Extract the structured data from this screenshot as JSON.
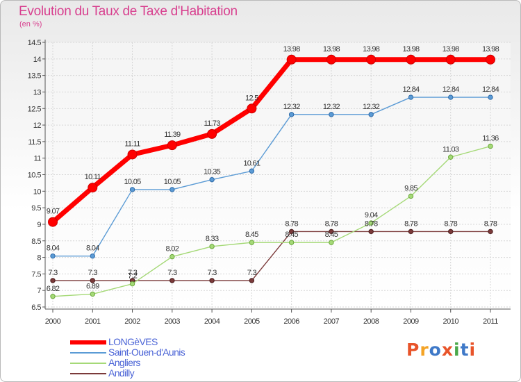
{
  "header": {
    "title": "Evolution du Taux de Taxe d'Habitation",
    "unit": "(en %)"
  },
  "logo": {
    "text": "Proxiti",
    "letter_colors": [
      "#e8542a",
      "#f4a325",
      "#3f79c8",
      "#e8542a",
      "#4aa84a",
      "#3f79c8",
      "#e8542a"
    ]
  },
  "chart_data": {
    "type": "line",
    "title": "Evolution du Taux de Taxe d'Habitation",
    "ylabel": "(en %)",
    "xlabel": "",
    "x": [
      "2000",
      "2001",
      "2002",
      "2003",
      "2004",
      "2005",
      "2006",
      "2007",
      "2008",
      "2009",
      "2010",
      "2011"
    ],
    "ylim": [
      6.5,
      14.5
    ],
    "yticks": [
      "6.5",
      "7",
      "7.5",
      "8",
      "8.5",
      "9",
      "9.5",
      "10",
      "10.5",
      "11",
      "11.5",
      "12",
      "12.5",
      "13",
      "13.5",
      "14",
      "14.5"
    ],
    "grid": true,
    "legend_position": "bottom-left",
    "series": [
      {
        "name": "LONGèVES",
        "color": "#ff0000",
        "values": [
          9.07,
          10.11,
          11.11,
          11.39,
          11.73,
          12.5,
          13.98,
          13.98,
          13.98,
          13.98,
          13.98,
          13.98
        ],
        "labels": [
          "9.07",
          "10.11",
          "11.11",
          "11.39",
          "11.73",
          "12.5",
          "13.98",
          "13.98",
          "13.98",
          "13.98",
          "13.98",
          "13.98"
        ]
      },
      {
        "name": "Saint-Ouen-d'Aunis",
        "color": "#5b9bd5",
        "values": [
          8.04,
          8.04,
          10.05,
          10.05,
          10.35,
          10.61,
          12.32,
          12.32,
          12.32,
          12.84,
          12.84,
          12.84
        ],
        "labels": [
          "8.04",
          "8.04",
          "10.05",
          "10.05",
          "10.35",
          "10.61",
          "12.32",
          "12.32",
          "12.32",
          "12.84",
          "12.84",
          "12.84"
        ]
      },
      {
        "name": "Angliers",
        "color": "#a5d977",
        "values": [
          6.82,
          6.89,
          7.2,
          8.02,
          8.33,
          8.45,
          8.45,
          8.45,
          9.04,
          9.85,
          11.03,
          11.36
        ],
        "labels": [
          "6.82",
          "6.89",
          "7.2",
          "8.02",
          "8.33",
          "8.45",
          "8.45",
          "8.45",
          "9.04",
          "9.85",
          "11.03",
          "11.36"
        ]
      },
      {
        "name": "Andilly",
        "color": "#7b3a3a",
        "values": [
          7.3,
          7.3,
          7.3,
          7.3,
          7.3,
          7.3,
          8.78,
          8.78,
          8.78,
          8.78,
          8.78,
          8.78
        ],
        "labels": [
          "7.3",
          "7.3",
          "7.3",
          "7.3",
          "7.3",
          "7.3",
          "8.78",
          "8.78",
          "8.78",
          "8.78",
          "8.78",
          "8.78"
        ]
      }
    ]
  }
}
